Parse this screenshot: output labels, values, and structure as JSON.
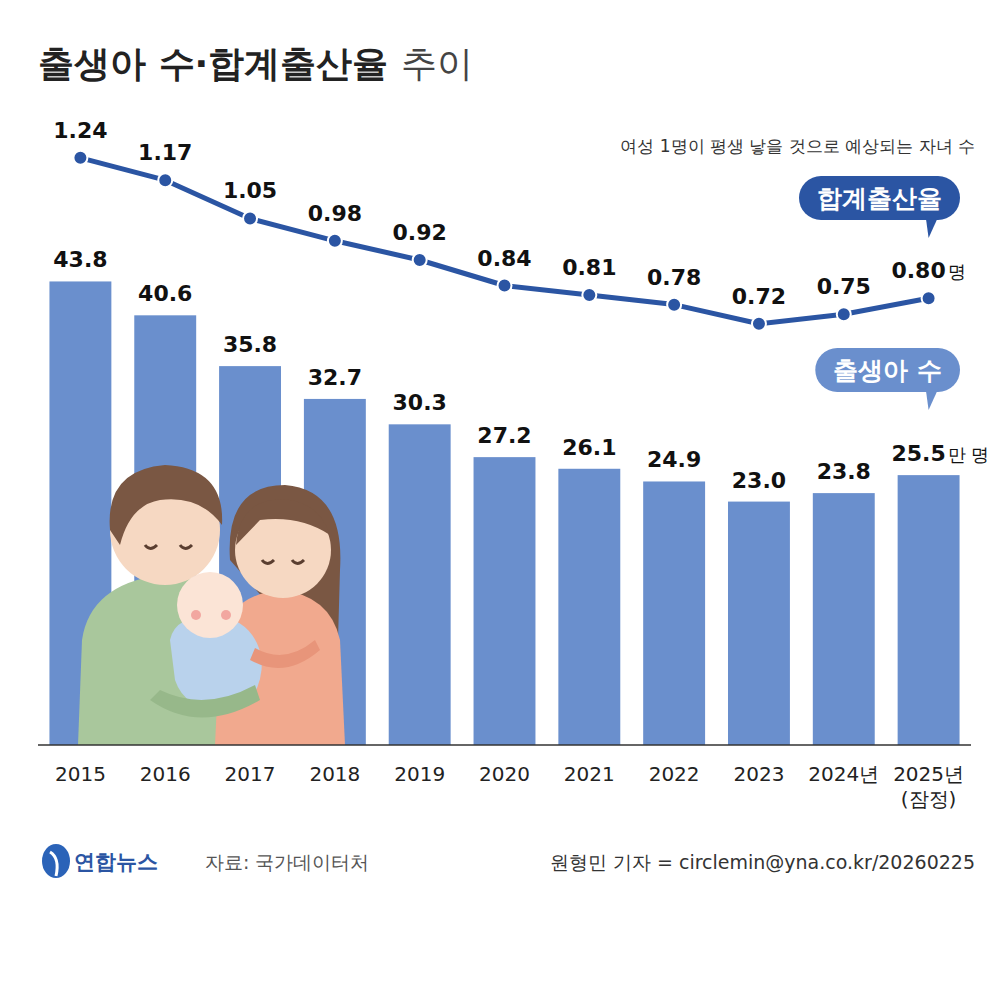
{
  "chart_data": {
    "type": "bar",
    "title": "출생아 수·합계출산율 추이",
    "categories": [
      "2015",
      "2016",
      "2017",
      "2018",
      "2019",
      "2020",
      "2021",
      "2022",
      "2023",
      "2024년",
      "2025년\n(잠정)"
    ],
    "series": [
      {
        "name": "출생아 수",
        "type": "bar",
        "color": "#6a8fcd",
        "values": [
          43.8,
          40.6,
          35.8,
          32.7,
          30.3,
          27.2,
          26.1,
          24.9,
          23.0,
          23.8,
          25.5
        ],
        "value_labels": [
          "43.8",
          "40.6",
          "35.8",
          "32.7",
          "30.3",
          "27.2",
          "26.1",
          "24.9",
          "23.0",
          "23.8",
          "25.5"
        ]
      },
      {
        "name": "합계출산율",
        "type": "line",
        "axis": "y2",
        "color": "#2b55a3",
        "marker": "circle",
        "values": [
          1.24,
          1.17,
          1.05,
          0.98,
          0.92,
          0.84,
          0.81,
          0.78,
          0.72,
          0.75,
          0.8
        ],
        "value_labels": [
          "1.24",
          "1.17",
          "1.05",
          "0.98",
          "0.92",
          "0.84",
          "0.81",
          "0.78",
          "0.72",
          "0.75",
          "0.80"
        ]
      }
    ],
    "ylim": [
      0,
      60
    ],
    "y2lim": [
      -0.6,
      1.39
    ],
    "tick_labels": false,
    "data_labels": true,
    "grid": false,
    "legend": "right",
    "annotations": {
      "note": "여성 1명이 평생 낳을 것으로 예상되는 자녀 수",
      "bar_unit": "만 명",
      "line_unit": "명",
      "source": "자료: 국가데이터처",
      "credit": "원형민 기자 = circlemin@yna.co.kr/20260225",
      "logo": "연합뉴스"
    }
  }
}
